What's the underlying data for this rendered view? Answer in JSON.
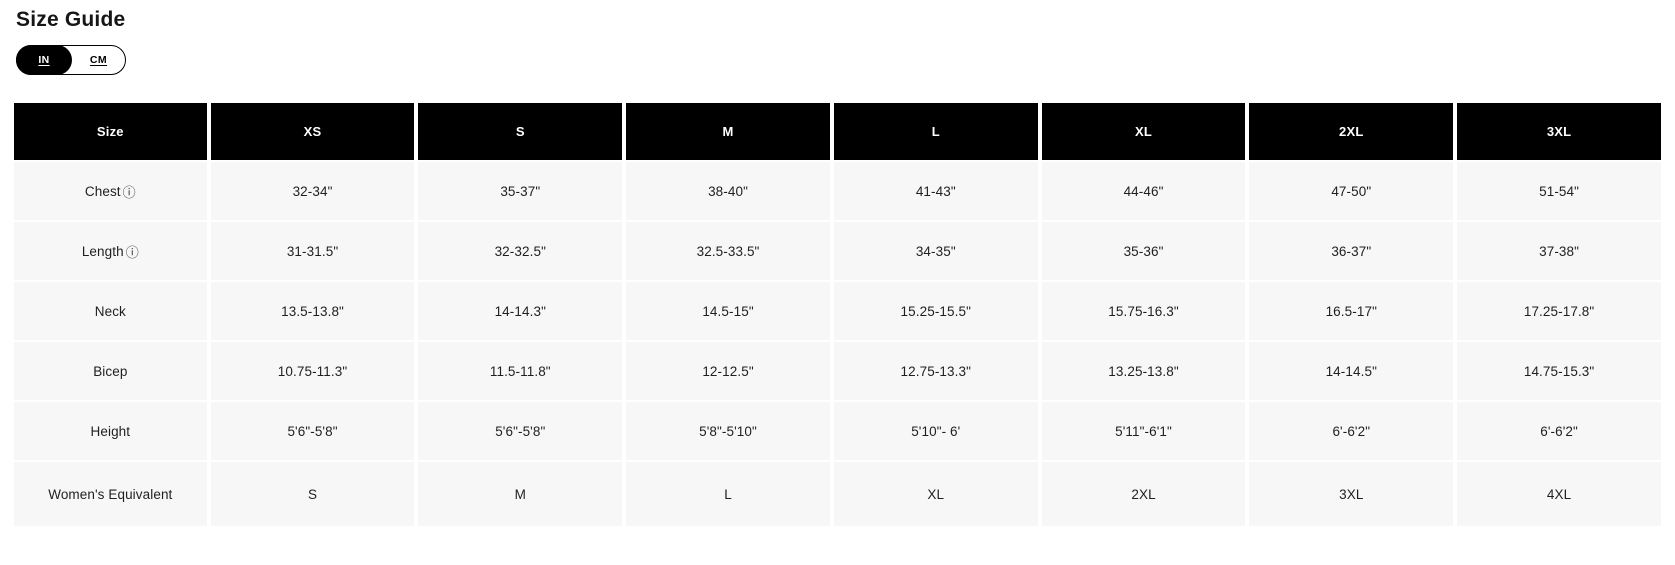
{
  "page": {
    "title": "Size Guide"
  },
  "unit_toggle": {
    "options": [
      {
        "label": "IN",
        "selected": true
      },
      {
        "label": "CM",
        "selected": false
      }
    ]
  },
  "icons": {
    "info_glyph": "ⓘ"
  },
  "table": {
    "columns": [
      "Size",
      "XS",
      "S",
      "M",
      "L",
      "XL",
      "2XL",
      "3XL"
    ],
    "rows": [
      {
        "label": "Chest",
        "info": true,
        "values": [
          "32-34\"",
          "35-37\"",
          "38-40\"",
          "41-43\"",
          "44-46\"",
          "47-50\"",
          "51-54\""
        ]
      },
      {
        "label": "Length",
        "info": true,
        "values": [
          "31-31.5\"",
          "32-32.5\"",
          "32.5-33.5\"",
          "34-35\"",
          "35-36\"",
          "36-37\"",
          "37-38\""
        ]
      },
      {
        "label": "Neck",
        "info": false,
        "values": [
          "13.5-13.8\"",
          "14-14.3\"",
          "14.5-15\"",
          "15.25-15.5\"",
          "15.75-16.3\"",
          "16.5-17\"",
          "17.25-17.8\""
        ]
      },
      {
        "label": "Bicep",
        "info": false,
        "values": [
          "10.75-11.3\"",
          "11.5-11.8\"",
          "12-12.5\"",
          "12.75-13.3\"",
          "13.25-13.8\"",
          "14-14.5\"",
          "14.75-15.3\""
        ]
      },
      {
        "label": "Height",
        "info": false,
        "values": [
          "5'6\"-5'8\"",
          "5'6\"-5'8\"",
          "5'8\"-5'10\"",
          "5'10\"- 6'",
          "5'11\"-6'1\"",
          "6'-6'2\"",
          "6'-6'2\""
        ]
      },
      {
        "label": "Women's Equivalent",
        "info": false,
        "values": [
          "S",
          "M",
          "L",
          "XL",
          "2XL",
          "3XL",
          "4XL"
        ]
      }
    ]
  },
  "colors": {
    "header_bg": "#000000",
    "row_bg": "#f7f7f7",
    "text": "#1f1f1f"
  }
}
